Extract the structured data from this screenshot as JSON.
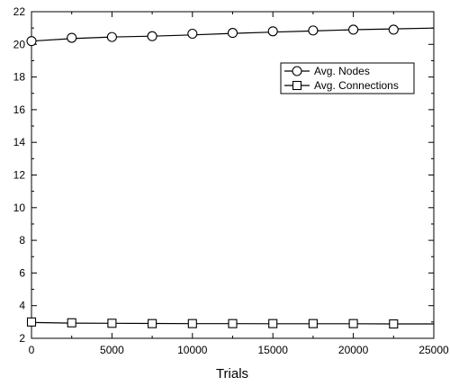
{
  "chart_data": {
    "type": "line",
    "title": "",
    "xlabel": "Trials",
    "ylabel": "",
    "xlim": [
      0,
      25000
    ],
    "ylim": [
      2,
      22
    ],
    "x_ticks": [
      0,
      5000,
      10000,
      15000,
      20000,
      25000
    ],
    "y_ticks": [
      2,
      4,
      6,
      8,
      10,
      12,
      14,
      16,
      18,
      20,
      22
    ],
    "grid": false,
    "legend_position": "upper-right",
    "line_curve": {
      "nodes": [
        [
          0,
          20.2
        ],
        [
          2500,
          20.35
        ],
        [
          5000,
          20.45
        ],
        [
          7500,
          20.5
        ],
        [
          10000,
          20.58
        ],
        [
          12500,
          20.67
        ],
        [
          15000,
          20.75
        ],
        [
          17500,
          20.82
        ],
        [
          20000,
          20.9
        ],
        [
          22500,
          20.95
        ],
        [
          25000,
          21.0
        ]
      ],
      "connections": [
        [
          0,
          2.97
        ],
        [
          2500,
          2.93
        ],
        [
          5000,
          2.92
        ],
        [
          7500,
          2.91
        ],
        [
          10000,
          2.9
        ],
        [
          12500,
          2.9
        ],
        [
          15000,
          2.89
        ],
        [
          17500,
          2.89
        ],
        [
          20000,
          2.89
        ],
        [
          22500,
          2.88
        ],
        [
          25000,
          2.88
        ]
      ]
    },
    "series": [
      {
        "name": "Avg. Nodes",
        "marker": "circle",
        "x": [
          0,
          2500,
          5000,
          7500,
          10000,
          12500,
          15000,
          17500,
          20000,
          22500
        ],
        "values": [
          20.2,
          20.4,
          20.45,
          20.5,
          20.65,
          20.7,
          20.8,
          20.85,
          20.9,
          20.9
        ]
      },
      {
        "name": "Avg. Connections",
        "marker": "square",
        "x": [
          0,
          2500,
          5000,
          7500,
          10000,
          12500,
          15000,
          17500,
          20000,
          22500
        ],
        "values": [
          3.0,
          2.95,
          2.92,
          2.9,
          2.9,
          2.9,
          2.9,
          2.9,
          2.9,
          2.88
        ]
      }
    ]
  }
}
